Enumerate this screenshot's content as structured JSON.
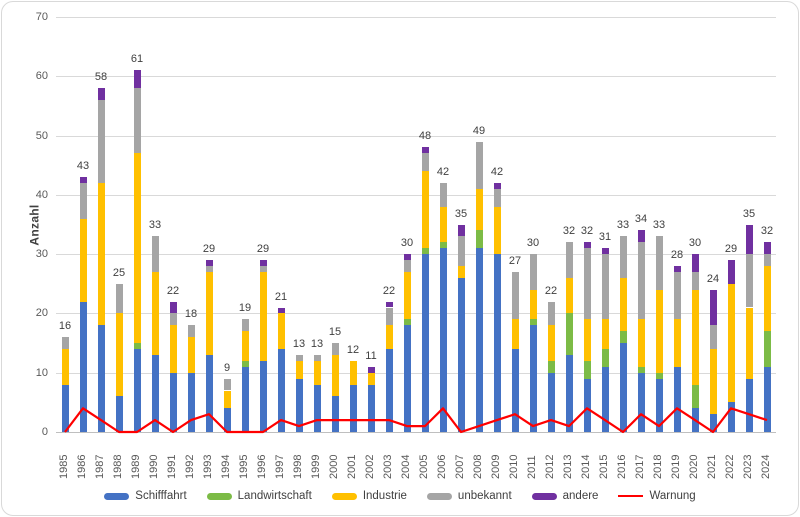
{
  "colors": {
    "schifffahrt": "#4472c4",
    "landwirtschaft": "#7cbb46",
    "industrie": "#ffc000",
    "unbekannt": "#a5a5a5",
    "andere": "#7030a0",
    "warnung": "#ff0000",
    "gridline": "#d9d9d9",
    "tick_text": "#595959",
    "label_text": "#404040"
  },
  "y_axis": {
    "label": "Anzahl",
    "ticks": [
      0,
      10,
      20,
      30,
      40,
      50,
      60,
      70
    ]
  },
  "legend": [
    {
      "key": "schifffahrt",
      "label": "Schifffahrt",
      "marker": "bar"
    },
    {
      "key": "landwirtschaft",
      "label": "Landwirtschaft",
      "marker": "bar"
    },
    {
      "key": "industrie",
      "label": "Industrie",
      "marker": "bar"
    },
    {
      "key": "unbekannt",
      "label": "unbekannt",
      "marker": "bar"
    },
    {
      "key": "andere",
      "label": "andere",
      "marker": "bar"
    },
    {
      "key": "warnung",
      "label": "Warnung",
      "marker": "line"
    }
  ],
  "chart_data": {
    "type": "bar",
    "subtype": "stacked-bars-with-line",
    "title": "",
    "xlabel": "",
    "ylabel": "Anzahl",
    "ylim": [
      0,
      70
    ],
    "grid": true,
    "legend_position": "bottom",
    "categories": [
      "1985",
      "1986",
      "1987",
      "1988",
      "1989",
      "1990",
      "1991",
      "1992",
      "1993",
      "1994",
      "1995",
      "1996",
      "1997",
      "1998",
      "1999",
      "2000",
      "2001",
      "2002",
      "2003",
      "2004",
      "2005",
      "2006",
      "2007",
      "2008",
      "2009",
      "2010",
      "2011",
      "2012",
      "2013",
      "2014",
      "2015",
      "2016",
      "2017",
      "2018",
      "2019",
      "2020",
      "2021",
      "2022",
      "2023",
      "2024"
    ],
    "series": [
      {
        "name": "Schifffahrt",
        "color_key": "schifffahrt",
        "values": [
          8,
          22,
          18,
          6,
          14,
          13,
          10,
          10,
          13,
          4,
          11,
          12,
          14,
          9,
          8,
          6,
          8,
          8,
          14,
          18,
          30,
          31,
          26,
          31,
          30,
          14,
          18,
          10,
          13,
          9,
          11,
          15,
          10,
          9,
          11,
          4,
          3,
          5,
          9,
          11
        ]
      },
      {
        "name": "Landwirtschaft",
        "color_key": "landwirtschaft",
        "values": [
          0,
          0,
          0,
          0,
          1,
          0,
          0,
          0,
          0,
          0,
          1,
          0,
          0,
          0,
          0,
          0,
          0,
          0,
          0,
          1,
          1,
          1,
          0,
          3,
          0,
          0,
          1,
          2,
          7,
          3,
          3,
          2,
          1,
          1,
          0,
          4,
          0,
          0,
          0,
          6
        ]
      },
      {
        "name": "Industrie",
        "color_key": "industrie",
        "values": [
          6,
          14,
          24,
          14,
          32,
          14,
          8,
          6,
          14,
          3,
          5,
          15,
          6,
          3,
          4,
          7,
          4,
          2,
          4,
          8,
          13,
          6,
          2,
          7,
          8,
          5,
          5,
          6,
          6,
          7,
          5,
          9,
          8,
          14,
          8,
          16,
          11,
          20,
          12,
          11
        ]
      },
      {
        "name": "unbekannt",
        "color_key": "unbekannt",
        "values": [
          2,
          6,
          14,
          5,
          11,
          6,
          2,
          2,
          1,
          2,
          2,
          1,
          0,
          1,
          1,
          2,
          0,
          0,
          3,
          2,
          3,
          4,
          5,
          8,
          3,
          8,
          6,
          4,
          6,
          12,
          11,
          7,
          13,
          9,
          8,
          3,
          4,
          0,
          9,
          2
        ]
      },
      {
        "name": "andere",
        "color_key": "andere",
        "values": [
          0,
          1,
          2,
          0,
          3,
          0,
          2,
          0,
          1,
          0,
          0,
          1,
          1,
          0,
          0,
          0,
          0,
          1,
          1,
          1,
          1,
          0,
          2,
          0,
          1,
          0,
          0,
          0,
          0,
          1,
          1,
          0,
          2,
          0,
          1,
          3,
          6,
          4,
          5,
          2
        ]
      }
    ],
    "totals": [
      16,
      43,
      58,
      25,
      61,
      33,
      22,
      18,
      29,
      9,
      19,
      29,
      21,
      13,
      13,
      15,
      12,
      11,
      22,
      30,
      48,
      42,
      35,
      49,
      42,
      27,
      30,
      22,
      32,
      32,
      31,
      33,
      34,
      33,
      28,
      30,
      24,
      29,
      35,
      32
    ],
    "line_series": {
      "name": "Warnung",
      "color_key": "warnung",
      "values": [
        0,
        4,
        2,
        0,
        0,
        2,
        0,
        2,
        3,
        0,
        0,
        0,
        2,
        1,
        2,
        2,
        2,
        2,
        2,
        1,
        1,
        4,
        0,
        1,
        2,
        3,
        1,
        2,
        1,
        4,
        2,
        0,
        3,
        1,
        4,
        2,
        0,
        4,
        3,
        2
      ]
    }
  }
}
